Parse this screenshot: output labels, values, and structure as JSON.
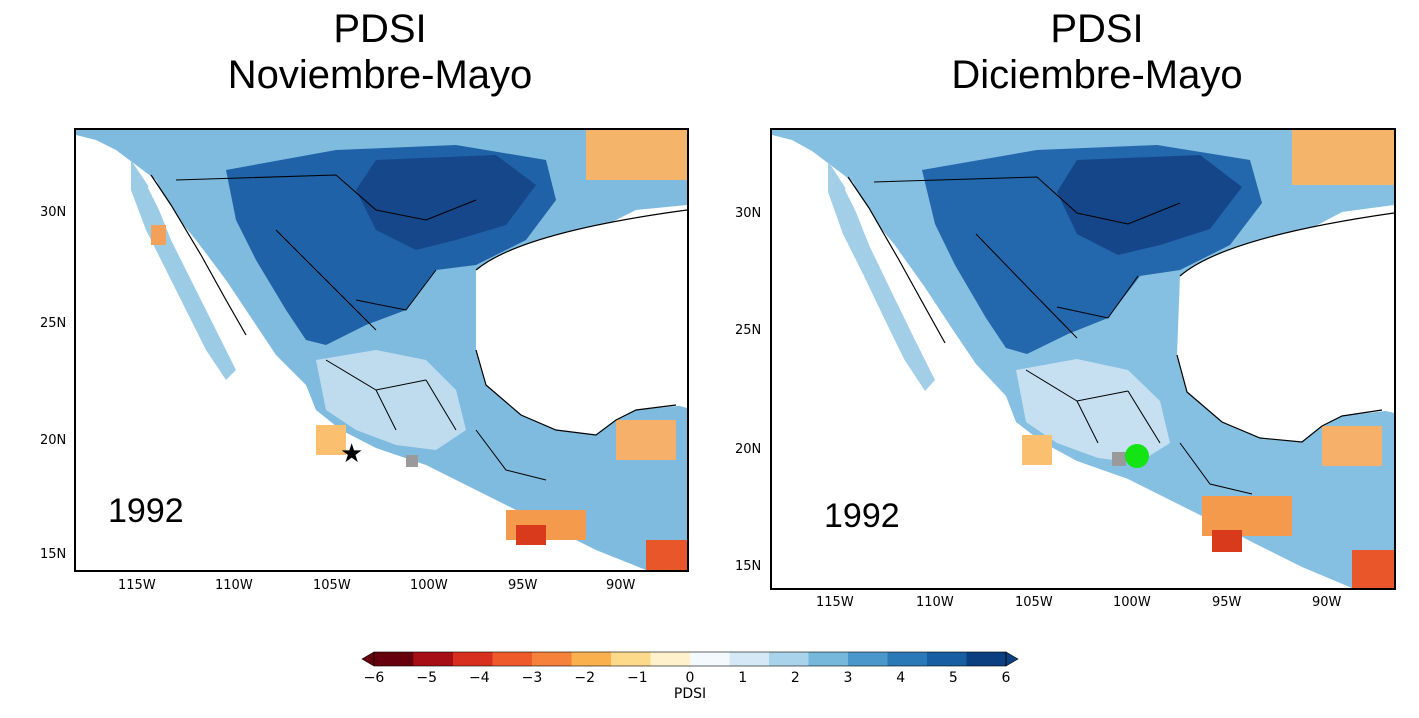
{
  "panels": [
    {
      "title_line1": "PDSI",
      "title_line2": "Noviembre-Mayo",
      "year": "1992",
      "marker": "star-icon",
      "lat_labels": [
        "30N",
        "25N",
        "20N",
        "15N"
      ],
      "lon_labels": [
        "115W",
        "110W",
        "105W",
        "100W",
        "95W",
        "90W"
      ]
    },
    {
      "title_line1": "PDSI",
      "title_line2": "Diciembre-Mayo",
      "year": "1992",
      "marker": "green-dot",
      "lat_labels": [
        "30N",
        "25N",
        "20N",
        "15N"
      ],
      "lon_labels": [
        "115W",
        "110W",
        "105W",
        "100W",
        "95W",
        "90W"
      ]
    }
  ],
  "colorbar": {
    "title": "PDSI",
    "ticks": [
      "−6",
      "−5",
      "−4",
      "−3",
      "−2",
      "−1",
      "0",
      "1",
      "2",
      "3",
      "4",
      "5",
      "6"
    ],
    "min": -6,
    "max": 6,
    "colors_negative": [
      "#67000d",
      "#a50f15",
      "#d7301f",
      "#ef5a2a",
      "#f6813a",
      "#fbb04e",
      "#fdd98a",
      "#fff1cc"
    ],
    "colors_positive": [
      "#f3f9fd",
      "#d4e9f5",
      "#a8d3ea",
      "#76b7dc",
      "#4a98cb",
      "#2b79b6",
      "#175ea2",
      "#0b3f80"
    ]
  },
  "map_colors": {
    "land_wet_light": "#c9e3f2",
    "land_wet_mid": "#5fa6d3",
    "land_wet_dark": "#1a5da3",
    "land_dry": "#f7a04c",
    "land_dry_dark": "#d93a1c",
    "missing": "#9a9a9a",
    "ocean": "#ffffff",
    "marker_green": "#14e314"
  }
}
